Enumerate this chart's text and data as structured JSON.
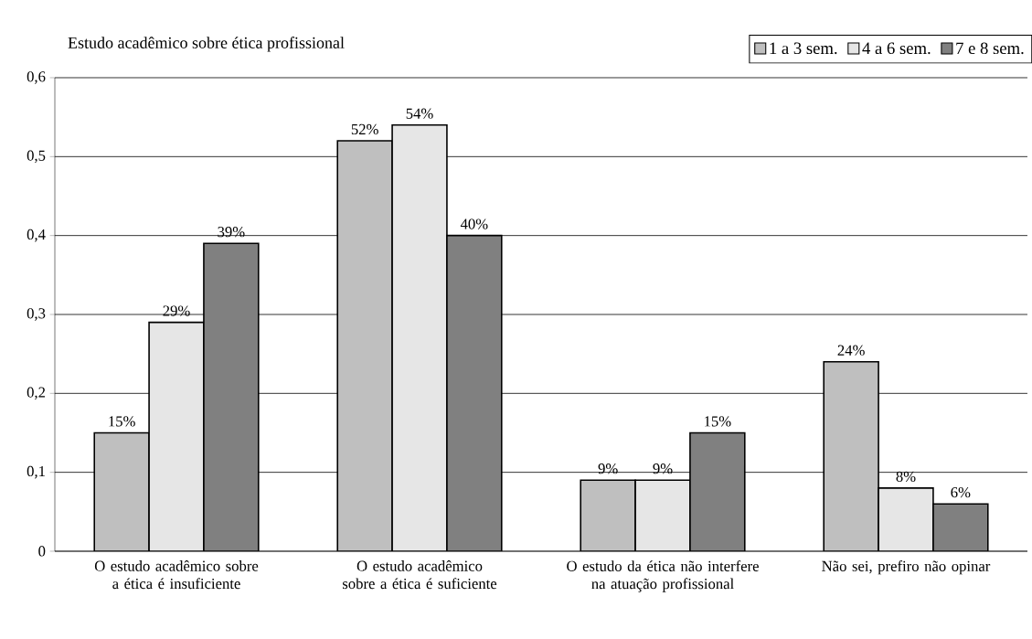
{
  "chart_data": {
    "type": "bar",
    "title": "Estudo acadêmico sobre ética profissional",
    "categories": [
      "O estudo acadêmico sobre a ética é insuficiente",
      "O estudo acadêmico sobre a ética é suficiente",
      "O estudo da ética não interfere na atuação profissional",
      "Não sei, prefiro não opinar"
    ],
    "series": [
      {
        "name": "1 a 3 sem.",
        "color": "#bfbfbf",
        "values": [
          0.15,
          0.52,
          0.09,
          0.24
        ],
        "value_labels": [
          "15%",
          "52%",
          "9%",
          "24%"
        ]
      },
      {
        "name": "4 a 6 sem.",
        "color": "#e6e6e6",
        "values": [
          0.29,
          0.54,
          0.09,
          0.08
        ],
        "value_labels": [
          "29%",
          "54%",
          "9%",
          "8%"
        ]
      },
      {
        "name": "7 e 8 sem.",
        "color": "#808080",
        "values": [
          0.39,
          0.4,
          0.15,
          0.06
        ],
        "value_labels": [
          "39%",
          "40%",
          "15%",
          "6%"
        ]
      }
    ],
    "ylim": [
      0,
      0.6
    ],
    "yticks": [
      0,
      {
        "value": 0.1,
        "label": "0,1"
      },
      {
        "value": 0.2,
        "label": "0,2"
      },
      {
        "value": 0.3,
        "label": "0,3"
      },
      {
        "value": 0.4,
        "label": "0,4"
      },
      {
        "value": 0.5,
        "label": "0,5"
      },
      {
        "value": 0.6,
        "label": "0,6"
      }
    ],
    "grid": "y",
    "legend": "top right"
  }
}
